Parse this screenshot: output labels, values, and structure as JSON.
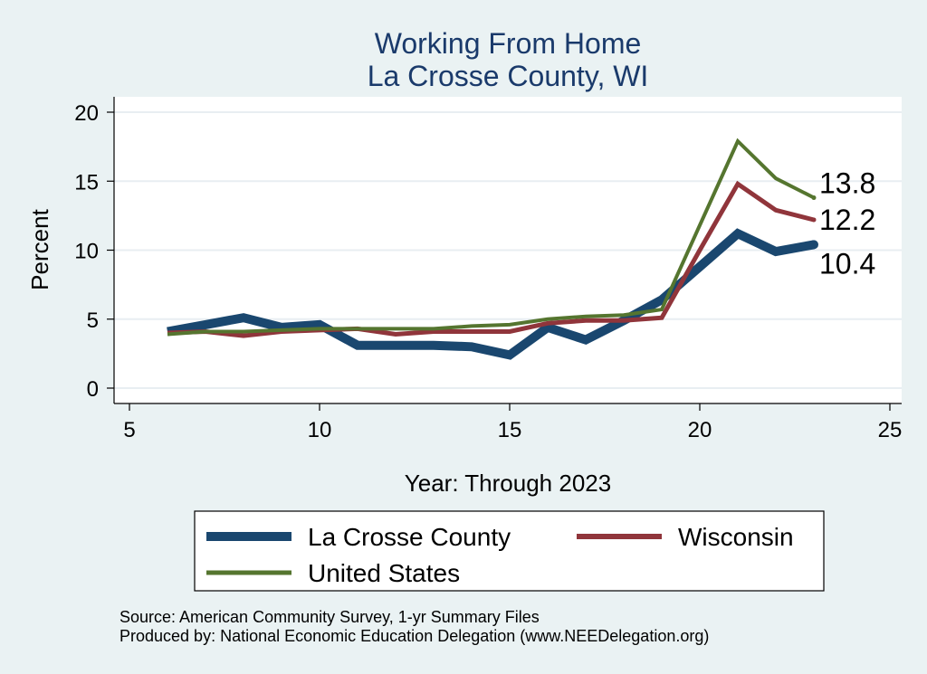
{
  "chart_data": {
    "type": "line",
    "title": "Working From Home",
    "subtitle": "La Crosse County, WI",
    "xlabel": "Year: Through 2023",
    "ylabel": "Percent",
    "xlim": [
      5,
      25
    ],
    "ylim": [
      0,
      20
    ],
    "x_ticks": [
      "5",
      "10",
      "15",
      "20",
      "25"
    ],
    "y_ticks": [
      "0",
      "5",
      "10",
      "15",
      "20"
    ],
    "grid": true,
    "legend_position": "bottom",
    "series": [
      {
        "name": "La Crosse County",
        "color": "#1a476f",
        "x": [
          6,
          7,
          8,
          9,
          10,
          11,
          12,
          13,
          14,
          15,
          16,
          17,
          18,
          19,
          20,
          21,
          22,
          23
        ],
        "y": [
          4.1,
          4.6,
          5.1,
          4.4,
          4.6,
          3.1,
          3.1,
          3.1,
          3.0,
          2.4,
          4.4,
          3.5,
          4.9,
          6.4,
          8.8,
          11.2,
          9.9,
          10.4
        ],
        "end_label": "10.4"
      },
      {
        "name": "Wisconsin",
        "color": "#90353b",
        "x": [
          6,
          7,
          8,
          9,
          10,
          11,
          12,
          13,
          14,
          15,
          16,
          17,
          18,
          19,
          20,
          21,
          22,
          23
        ],
        "y": [
          4.0,
          4.1,
          3.8,
          4.1,
          4.2,
          4.3,
          3.9,
          4.1,
          4.1,
          4.1,
          4.7,
          4.9,
          4.9,
          5.1,
          10.0,
          14.8,
          12.9,
          12.2
        ],
        "end_label": "12.2"
      },
      {
        "name": "United States",
        "color": "#55752f",
        "x": [
          6,
          7,
          8,
          9,
          10,
          11,
          12,
          13,
          14,
          15,
          16,
          17,
          18,
          19,
          20,
          21,
          22,
          23
        ],
        "y": [
          3.9,
          4.1,
          4.1,
          4.2,
          4.3,
          4.3,
          4.3,
          4.3,
          4.5,
          4.6,
          5.0,
          5.2,
          5.3,
          5.7,
          11.8,
          17.9,
          15.2,
          13.8
        ],
        "end_label": "13.8"
      }
    ]
  },
  "source_note": "Source: American Community Survey, 1-yr Summary Files",
  "producer_note": "Produced by: National Economic Education Delegation (www.NEEDelegation.org)"
}
